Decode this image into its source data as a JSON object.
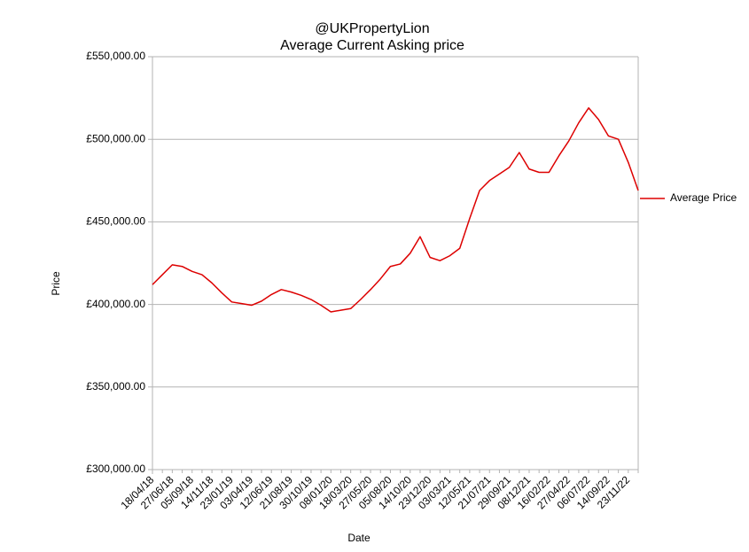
{
  "chart_data": {
    "type": "line",
    "title": [
      "@UKPropertyLion",
      "Average Current Asking price"
    ],
    "x_label": "Date",
    "y_label": "Price",
    "categories": [
      "18/04/18",
      null,
      "27/06/18",
      null,
      "05/09/18",
      null,
      "14/11/18",
      null,
      "23/01/19",
      null,
      "03/04/19",
      null,
      "12/06/19",
      null,
      "21/08/19",
      null,
      "30/10/19",
      null,
      "08/01/20",
      null,
      "18/03/20",
      null,
      "27/05/20",
      null,
      "05/08/20",
      null,
      "14/10/20",
      null,
      "23/12/20",
      null,
      "03/03/21",
      null,
      "12/05/21",
      null,
      "21/07/21",
      null,
      "29/09/21",
      null,
      "08/12/21",
      null,
      "16/02/22",
      null,
      "27/04/22",
      null,
      "06/07/22",
      null,
      "14/09/22",
      null,
      "23/11/22",
      null
    ],
    "series": [
      {
        "name": "Average Price",
        "color": "#dd0000",
        "values": [
          412000,
          418000,
          424000,
          423000,
          420000,
          418000,
          413000,
          407000,
          401500,
          400500,
          399500,
          402000,
          406000,
          409000,
          407500,
          405500,
          403000,
          399500,
          395500,
          396500,
          397500,
          403000,
          409000,
          415500,
          423000,
          424500,
          431000,
          441000,
          428500,
          426500,
          429500,
          434000,
          452000,
          469000,
          475000,
          479000,
          483000,
          492000,
          482000,
          480000,
          480000,
          490000,
          499000,
          510000,
          519000,
          512000,
          502000,
          500000,
          486000,
          469000
        ]
      }
    ],
    "ylim": [
      300000,
      550000
    ],
    "yticks": [
      {
        "value": 300000,
        "label": "£300,000.00"
      },
      {
        "value": 350000,
        "label": "£350,000.00"
      },
      {
        "value": 400000,
        "label": "£400,000.00"
      },
      {
        "value": 450000,
        "label": "£450,000.00"
      },
      {
        "value": 500000,
        "label": "£500,000.00"
      },
      {
        "value": 550000,
        "label": "£550,000.00"
      }
    ],
    "grid": true,
    "legend": "right"
  }
}
